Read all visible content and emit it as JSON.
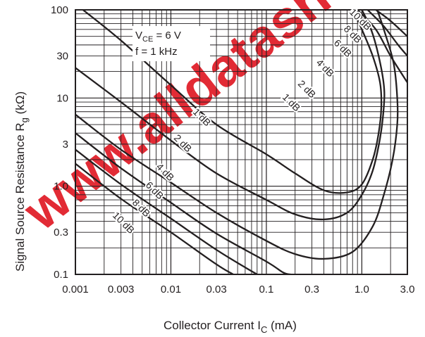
{
  "chart_data": {
    "type": "line",
    "title": "",
    "xlabel": "Collector Current  I",
    "xlabel_sub": "C",
    "xlabel_unit": "  (mA)",
    "ylabel": "Signal Source Resistance  R",
    "ylabel_sub": "g",
    "ylabel_unit": "  (kΩ)",
    "x_scale": "log",
    "y_scale": "log",
    "xlim": [
      0.001,
      3.0
    ],
    "ylim": [
      0.1,
      100
    ],
    "grid": true,
    "x_ticks": [
      0.001,
      0.003,
      0.01,
      0.03,
      0.1,
      0.3,
      1.0,
      3.0
    ],
    "x_tick_labels": [
      "0.001",
      "0.003",
      "0.01",
      "0.03",
      "0.1",
      "0.3",
      "1.0",
      "3.0"
    ],
    "y_ticks": [
      0.1,
      0.3,
      1.0,
      3,
      10,
      30,
      100
    ],
    "y_tick_labels": [
      "0.1",
      "0.3",
      "1.0",
      "3",
      "10",
      "30",
      "100"
    ],
    "conditions": {
      "vce_prefix": "V",
      "vce_sub": "CE",
      "vce_value": " = 6 V",
      "freq": "f = 1 kHz"
    },
    "watermark": "www.alldatasheet.design",
    "series": [
      {
        "name": "1 dB",
        "points": [
          [
            0.0012,
            100
          ],
          [
            0.003,
            45
          ],
          [
            0.01,
            14
          ],
          [
            0.03,
            5
          ],
          [
            0.1,
            2.3
          ],
          [
            0.2,
            1.4
          ],
          [
            0.4,
            0.9
          ],
          [
            0.7,
            0.85
          ],
          [
            1.0,
            1.05
          ],
          [
            1.3,
            2.0
          ],
          [
            1.5,
            4.0
          ],
          [
            1.6,
            8
          ],
          [
            1.55,
            15
          ],
          [
            1.3,
            30
          ],
          [
            1.0,
            60
          ],
          [
            0.8,
            100
          ]
        ]
      },
      {
        "name": "2 dB",
        "points": [
          [
            0.001,
            22
          ],
          [
            0.003,
            9
          ],
          [
            0.01,
            3.3
          ],
          [
            0.03,
            1.4
          ],
          [
            0.1,
            0.7
          ],
          [
            0.2,
            0.48
          ],
          [
            0.4,
            0.42
          ],
          [
            0.7,
            0.5
          ],
          [
            1.0,
            0.8
          ],
          [
            1.3,
            1.5
          ],
          [
            1.55,
            3.5
          ],
          [
            1.7,
            8
          ],
          [
            1.7,
            14
          ],
          [
            1.5,
            30
          ],
          [
            1.25,
            60
          ],
          [
            1.0,
            100
          ]
        ]
      },
      {
        "name": "4 dB",
        "points": [
          [
            0.001,
            6.5
          ],
          [
            0.003,
            2.6
          ],
          [
            0.01,
            1.1
          ],
          [
            0.03,
            0.5
          ],
          [
            0.1,
            0.24
          ],
          [
            0.2,
            0.17
          ],
          [
            0.4,
            0.15
          ],
          [
            0.8,
            0.18
          ],
          [
            1.3,
            0.35
          ],
          [
            1.7,
            0.8
          ],
          [
            2.1,
            2.0
          ],
          [
            2.35,
            5
          ],
          [
            2.35,
            10
          ],
          [
            2.15,
            25
          ],
          [
            1.7,
            60
          ],
          [
            1.45,
            100
          ]
        ]
      },
      {
        "name": "6 dB",
        "points": [
          [
            0.001,
            4.0
          ],
          [
            0.003,
            1.6
          ],
          [
            0.01,
            0.65
          ],
          [
            0.03,
            0.29
          ],
          [
            0.1,
            0.14
          ],
          [
            0.15,
            0.105
          ],
          [
            0.18,
            0.1
          ]
        ]
      },
      {
        "name": "8 dB",
        "points": [
          [
            0.001,
            2.6
          ],
          [
            0.003,
            1.05
          ],
          [
            0.01,
            0.43
          ],
          [
            0.03,
            0.19
          ],
          [
            0.06,
            0.12
          ],
          [
            0.08,
            0.1
          ]
        ]
      },
      {
        "name": "10 dB",
        "points": [
          [
            0.001,
            1.8
          ],
          [
            0.003,
            0.72
          ],
          [
            0.01,
            0.3
          ],
          [
            0.03,
            0.13
          ],
          [
            0.045,
            0.1
          ]
        ]
      },
      {
        "name": "6 dB",
        "points": [
          [
            0.9,
            100
          ],
          [
            1.4,
            60
          ],
          [
            2.0,
            30
          ],
          [
            3.0,
            15
          ]
        ]
      },
      {
        "name": "8 dB",
        "points": [
          [
            1.15,
            100
          ],
          [
            1.7,
            65
          ],
          [
            2.4,
            40
          ],
          [
            3.0,
            30
          ]
        ]
      },
      {
        "name": "10 dB",
        "points": [
          [
            1.4,
            100
          ],
          [
            2.0,
            75
          ],
          [
            3.0,
            50
          ]
        ]
      }
    ],
    "curve_labels": [
      "1 dB",
      "2 dB",
      "4 dB",
      "6 dB",
      "8 dB",
      "10 dB",
      "2 dB",
      "1 dB",
      "4 dB",
      "6 dB",
      "8 dB",
      "10 dB"
    ]
  }
}
